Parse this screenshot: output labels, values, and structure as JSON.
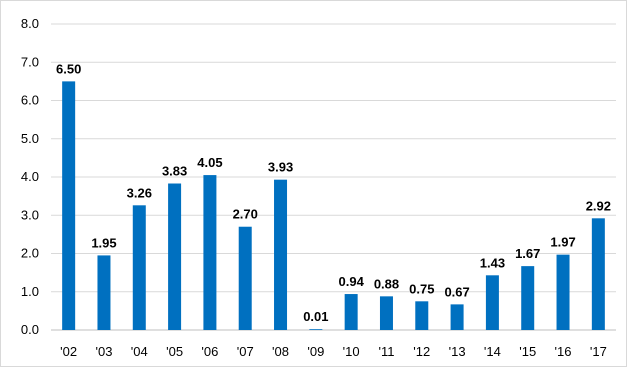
{
  "chart_data": {
    "type": "bar",
    "title": "",
    "xlabel": "",
    "ylabel": "",
    "categories": [
      "'02",
      "'03",
      "'04",
      "'05",
      "'06",
      "'07",
      "'08",
      "'09",
      "'10",
      "'11",
      "'12",
      "'13",
      "'14",
      "'15",
      "'16",
      "'17"
    ],
    "values": [
      6.5,
      1.95,
      3.26,
      3.83,
      4.05,
      2.7,
      3.93,
      0.01,
      0.94,
      0.88,
      0.75,
      0.67,
      1.43,
      1.67,
      1.97,
      2.92
    ],
    "data_labels": [
      "6.50",
      "1.95",
      "3.26",
      "3.83",
      "4.05",
      "2.70",
      "3.93",
      "0.01",
      "0.94",
      "0.88",
      "0.75",
      "0.67",
      "1.43",
      "1.67",
      "1.97",
      "2.92"
    ],
    "ylim": [
      0,
      8
    ],
    "yticks": [
      0,
      1,
      2,
      3,
      4,
      5,
      6,
      7,
      8
    ],
    "ytick_labels": [
      "0.0",
      "1.0",
      "2.0",
      "3.0",
      "4.0",
      "5.0",
      "6.0",
      "7.0",
      "8.0"
    ],
    "grid": true,
    "legend": "none",
    "bar_color": "#0070c0"
  }
}
